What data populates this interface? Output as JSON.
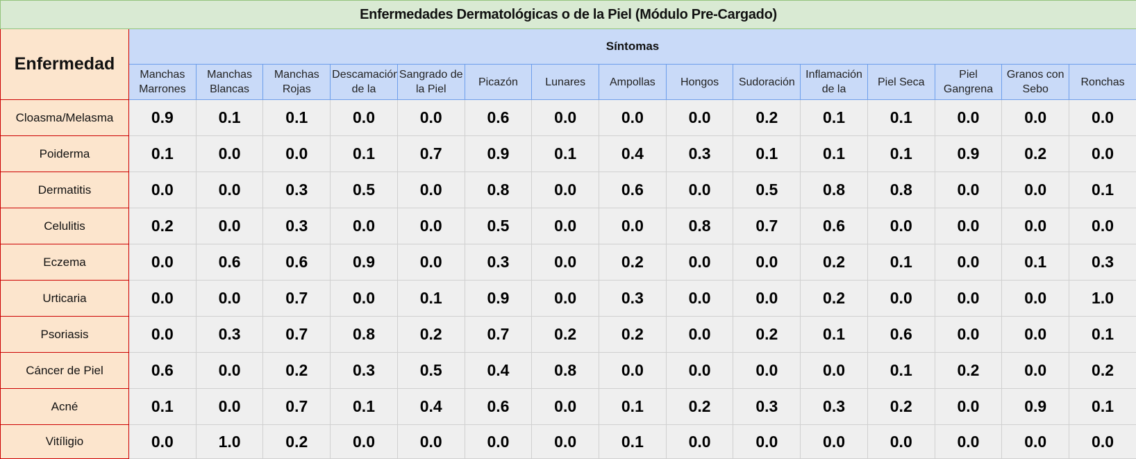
{
  "sheet": {
    "title": "Enfermedades Dermatológicas o de la Piel (Módulo Pre-Cargado)",
    "disease_header": "Enfermedad",
    "symptoms_header": "Síntomas",
    "symptoms": [
      "Manchas Marrones",
      "Manchas Blancas",
      "Manchas Rojas",
      "Descamación de la",
      "Sangrado de la Piel",
      "Picazón",
      "Lunares",
      "Ampollas",
      "Hongos",
      "Sudoración",
      "Inflamación de la",
      "Piel Seca",
      "Piel Gangrena",
      "Granos con Sebo",
      "Ronchas"
    ],
    "rows": [
      {
        "disease": "Cloasma/Melasma",
        "values": [
          "0.9",
          "0.1",
          "0.1",
          "0.0",
          "0.0",
          "0.6",
          "0.0",
          "0.0",
          "0.0",
          "0.2",
          "0.1",
          "0.1",
          "0.0",
          "0.0",
          "0.0"
        ]
      },
      {
        "disease": "Poiderma",
        "values": [
          "0.1",
          "0.0",
          "0.0",
          "0.1",
          "0.7",
          "0.9",
          "0.1",
          "0.4",
          "0.3",
          "0.1",
          "0.1",
          "0.1",
          "0.9",
          "0.2",
          "0.0"
        ]
      },
      {
        "disease": "Dermatitis",
        "values": [
          "0.0",
          "0.0",
          "0.3",
          "0.5",
          "0.0",
          "0.8",
          "0.0",
          "0.6",
          "0.0",
          "0.5",
          "0.8",
          "0.8",
          "0.0",
          "0.0",
          "0.1"
        ]
      },
      {
        "disease": "Celulitis",
        "values": [
          "0.2",
          "0.0",
          "0.3",
          "0.0",
          "0.0",
          "0.5",
          "0.0",
          "0.0",
          "0.8",
          "0.7",
          "0.6",
          "0.0",
          "0.0",
          "0.0",
          "0.0"
        ]
      },
      {
        "disease": "Eczema",
        "values": [
          "0.0",
          "0.6",
          "0.6",
          "0.9",
          "0.0",
          "0.3",
          "0.0",
          "0.2",
          "0.0",
          "0.0",
          "0.2",
          "0.1",
          "0.0",
          "0.1",
          "0.3"
        ]
      },
      {
        "disease": "Urticaria",
        "values": [
          "0.0",
          "0.0",
          "0.7",
          "0.0",
          "0.1",
          "0.9",
          "0.0",
          "0.3",
          "0.0",
          "0.0",
          "0.2",
          "0.0",
          "0.0",
          "0.0",
          "1.0"
        ]
      },
      {
        "disease": "Psoriasis",
        "values": [
          "0.0",
          "0.3",
          "0.7",
          "0.8",
          "0.2",
          "0.7",
          "0.2",
          "0.2",
          "0.0",
          "0.2",
          "0.1",
          "0.6",
          "0.0",
          "0.0",
          "0.1"
        ]
      },
      {
        "disease": "Cáncer de Piel",
        "values": [
          "0.6",
          "0.0",
          "0.2",
          "0.3",
          "0.5",
          "0.4",
          "0.8",
          "0.0",
          "0.0",
          "0.0",
          "0.0",
          "0.1",
          "0.2",
          "0.0",
          "0.2"
        ]
      },
      {
        "disease": "Acné",
        "values": [
          "0.1",
          "0.0",
          "0.7",
          "0.1",
          "0.4",
          "0.6",
          "0.0",
          "0.1",
          "0.2",
          "0.3",
          "0.3",
          "0.2",
          "0.0",
          "0.9",
          "0.1"
        ]
      },
      {
        "disease": "Vitíligio",
        "values": [
          "0.0",
          "1.0",
          "0.2",
          "0.0",
          "0.0",
          "0.0",
          "0.0",
          "0.1",
          "0.0",
          "0.0",
          "0.0",
          "0.0",
          "0.0",
          "0.0",
          "0.0"
        ]
      }
    ]
  },
  "colors": {
    "title_bg": "#d9ead3",
    "disease_bg": "#fce5cd",
    "disease_border": "#cc0000",
    "symptom_bg": "#c9daf8",
    "symptom_border": "#6d9eeb",
    "value_bg": "#efefef"
  }
}
